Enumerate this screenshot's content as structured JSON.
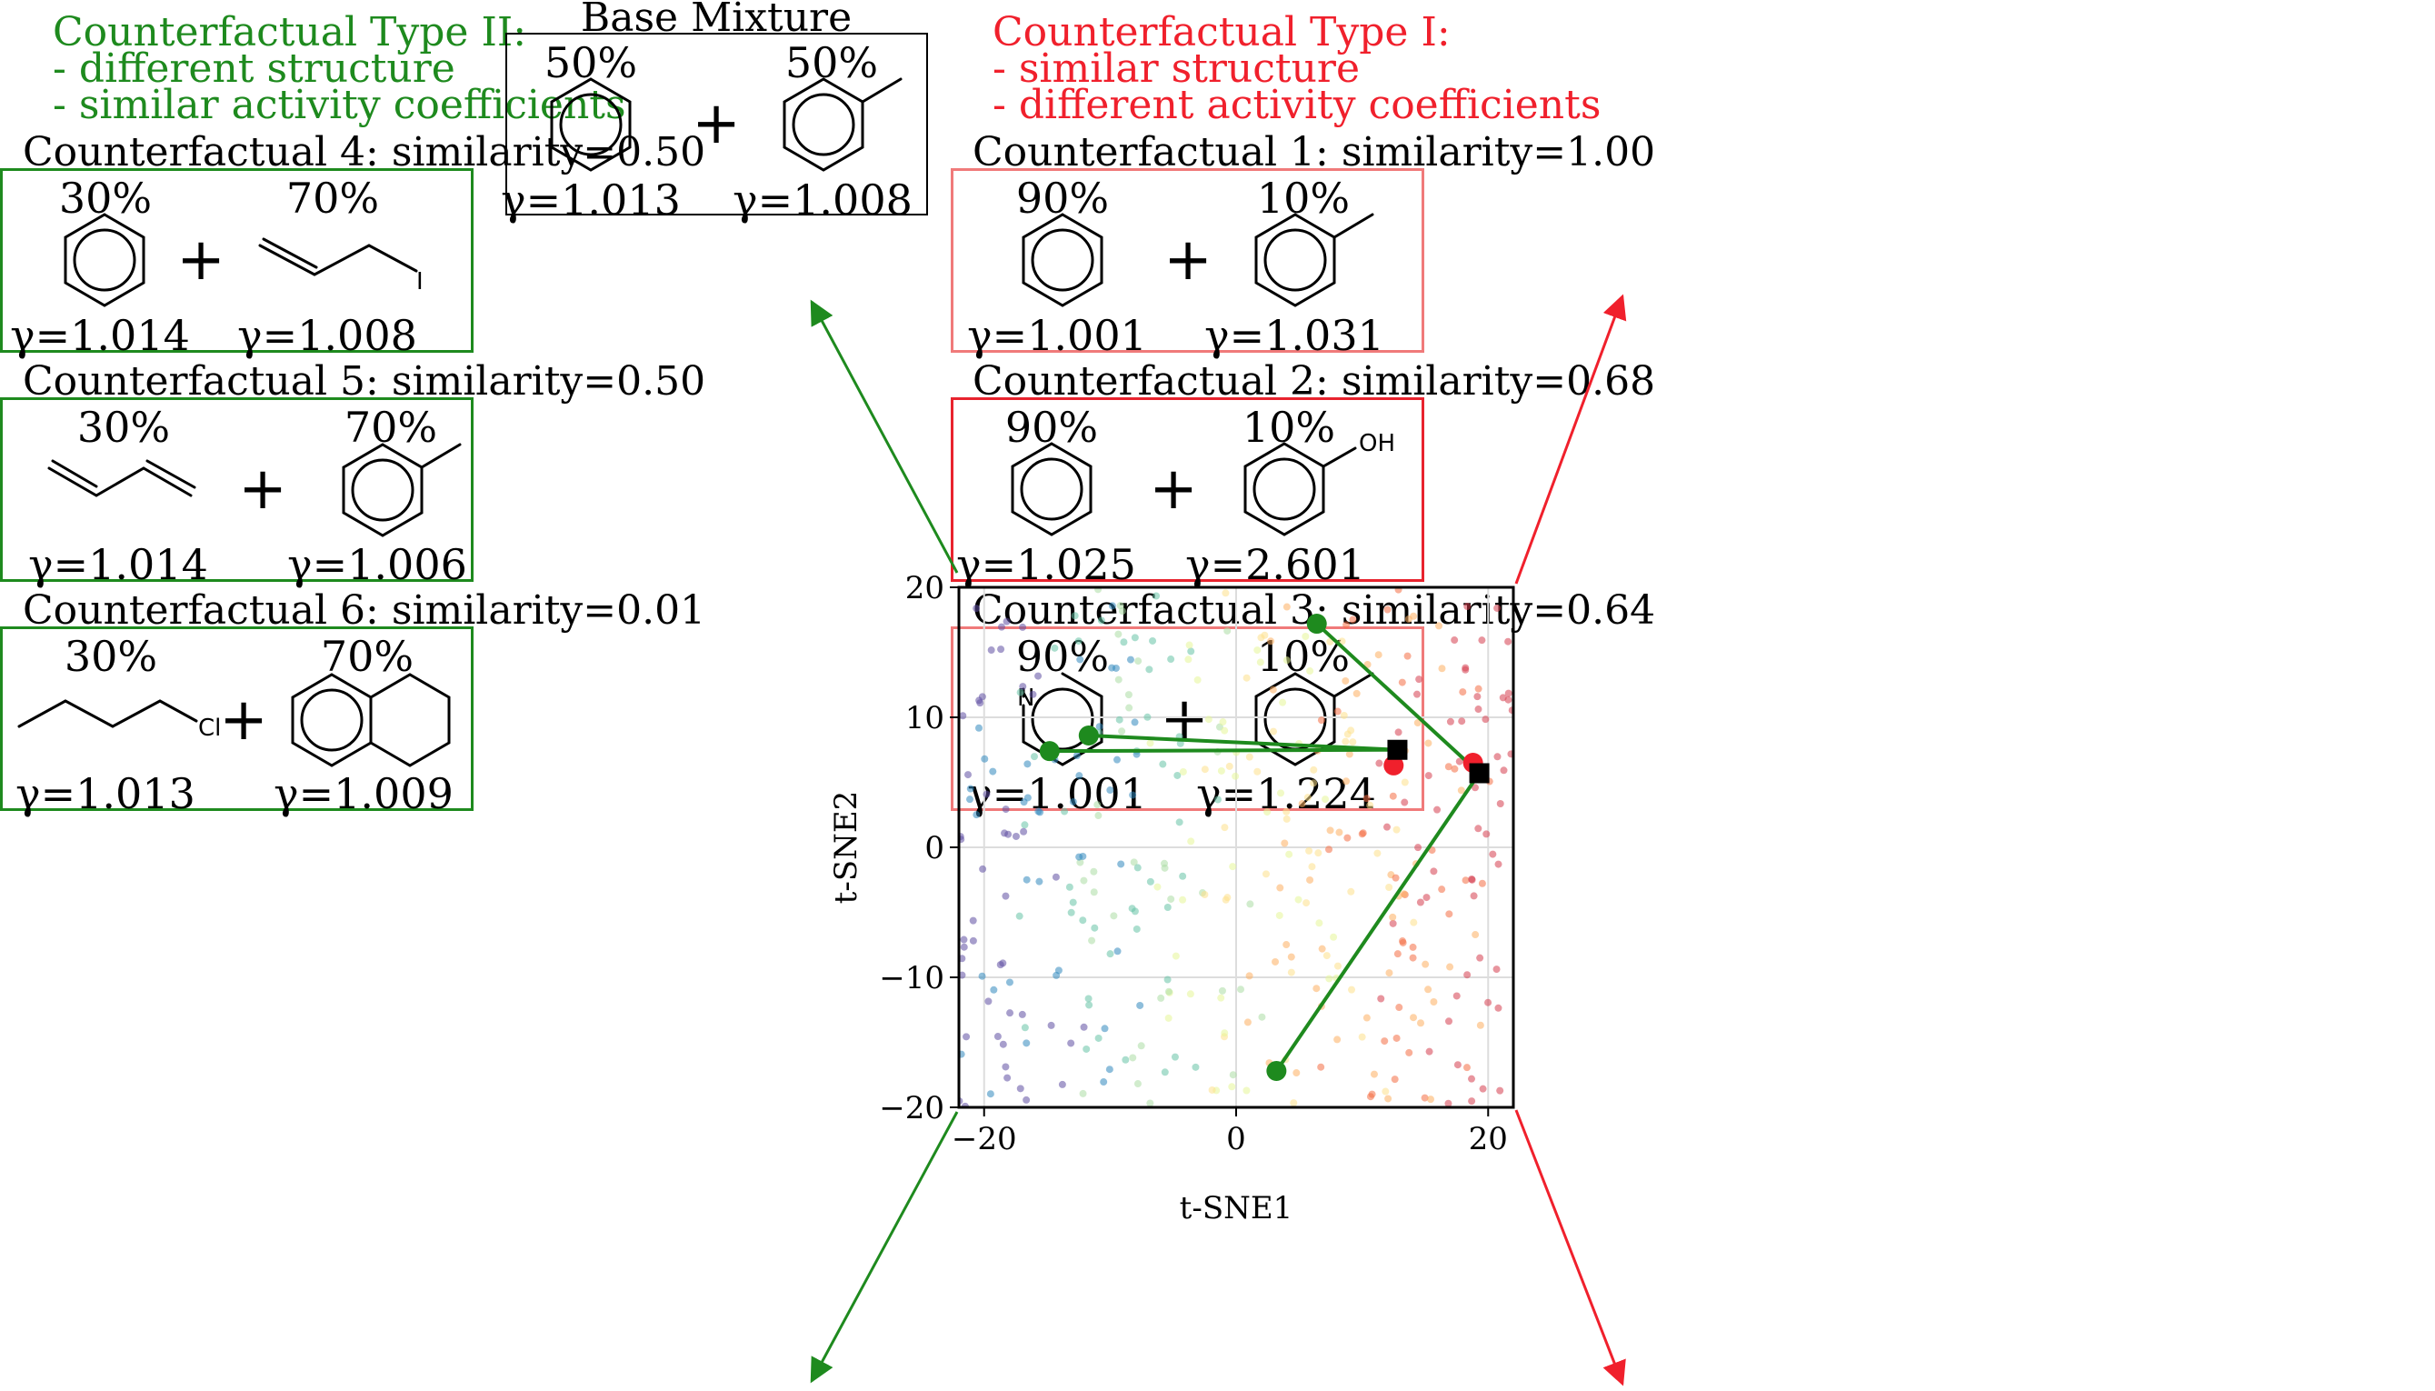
{
  "base": {
    "title": "Base Mixture",
    "left": {
      "pct": "50%",
      "gamma": "γ=1.013",
      "molecule": "benzene"
    },
    "right": {
      "pct": "50%",
      "gamma": "γ=1.008",
      "molecule": "toluene"
    }
  },
  "type2": {
    "title": "Counterfactual Type II:",
    "line1": " - different structure",
    "line2": " - similar activity coefficients",
    "color": "#1e8a1e"
  },
  "type1": {
    "title": "Counterfactual Type I:",
    "line1": " - similar structure",
    "line2": " - different activity coefficients",
    "color": "#f0202c"
  },
  "cf4": {
    "title": "Counterfactual 4: similarity=0.50",
    "left": {
      "pct": "30%",
      "gamma": "γ=1.014",
      "molecule": "benzene"
    },
    "right": {
      "pct": "70%",
      "gamma": "γ=1.008",
      "molecule": "allyl-iodide",
      "atom": "I"
    }
  },
  "cf5": {
    "title": "Counterfactual 5: similarity=0.50",
    "left": {
      "pct": "30%",
      "gamma": "γ=1.014",
      "molecule": "butadiene"
    },
    "right": {
      "pct": "70%",
      "gamma": "γ=1.006",
      "molecule": "toluene"
    }
  },
  "cf6": {
    "title": "Counterfactual 6: similarity=0.01",
    "left": {
      "pct": "30%",
      "gamma": "γ=1.013",
      "molecule": "1-chlorobutane",
      "atom": "Cl"
    },
    "right": {
      "pct": "70%",
      "gamma": "γ=1.009",
      "molecule": "tetralin"
    }
  },
  "cf1": {
    "title": "Counterfactual 1: similarity=1.00",
    "left": {
      "pct": "90%",
      "gamma": "γ=1.001",
      "molecule": "benzene"
    },
    "right": {
      "pct": "10%",
      "gamma": "γ=1.031",
      "molecule": "toluene"
    }
  },
  "cf2": {
    "title": "Counterfactual 2: similarity=0.68",
    "left": {
      "pct": "90%",
      "gamma": "γ=1.025",
      "molecule": "benzene"
    },
    "right": {
      "pct": "10%",
      "gamma": "γ=2.601",
      "molecule": "phenol",
      "atom": "OH"
    }
  },
  "cf3": {
    "title": "Counterfactual 3: similarity=0.64",
    "left": {
      "pct": "90%",
      "gamma": "γ=1.001",
      "molecule": "pyridine",
      "atom": "N"
    },
    "right": {
      "pct": "10%",
      "gamma": "γ=1.224",
      "molecule": "toluene"
    }
  },
  "plus": "+",
  "chart_data": {
    "type": "scatter",
    "xlabel": "t-SNE1",
    "ylabel": "t-SNE2",
    "xlim": [
      -22,
      22
    ],
    "ylim": [
      -20,
      20
    ],
    "xticks": [
      "−20",
      "0",
      "20"
    ],
    "yticks": [
      "20",
      "10",
      "0",
      "−10",
      "−20"
    ],
    "xtick_values": [
      -20,
      0,
      20
    ],
    "ytick_values": [
      20,
      10,
      0,
      -10,
      -20
    ],
    "grid": true,
    "markers": {
      "base": [
        {
          "x": 12.8,
          "y": 7.5
        },
        {
          "x": 19.3,
          "y": 5.7
        }
      ],
      "type1": [
        {
          "x": 12.5,
          "y": 6.3
        },
        {
          "x": 18.8,
          "y": 6.5
        }
      ],
      "type2": [
        {
          "x": -14.8,
          "y": 7.4
        },
        {
          "x": -11.7,
          "y": 8.6
        },
        {
          "x": 6.4,
          "y": 17.2
        },
        {
          "x": 3.2,
          "y": -17.2
        }
      ]
    },
    "links_type1": [
      [
        0,
        0
      ],
      [
        1,
        1
      ]
    ],
    "links_type2": [
      [
        0,
        0
      ],
      [
        0,
        1
      ],
      [
        1,
        2
      ],
      [
        1,
        3
      ]
    ],
    "background_points": 420,
    "colors": {
      "type1": "#f0202c",
      "type2": "#1e8a1e",
      "base": "#000000"
    }
  }
}
